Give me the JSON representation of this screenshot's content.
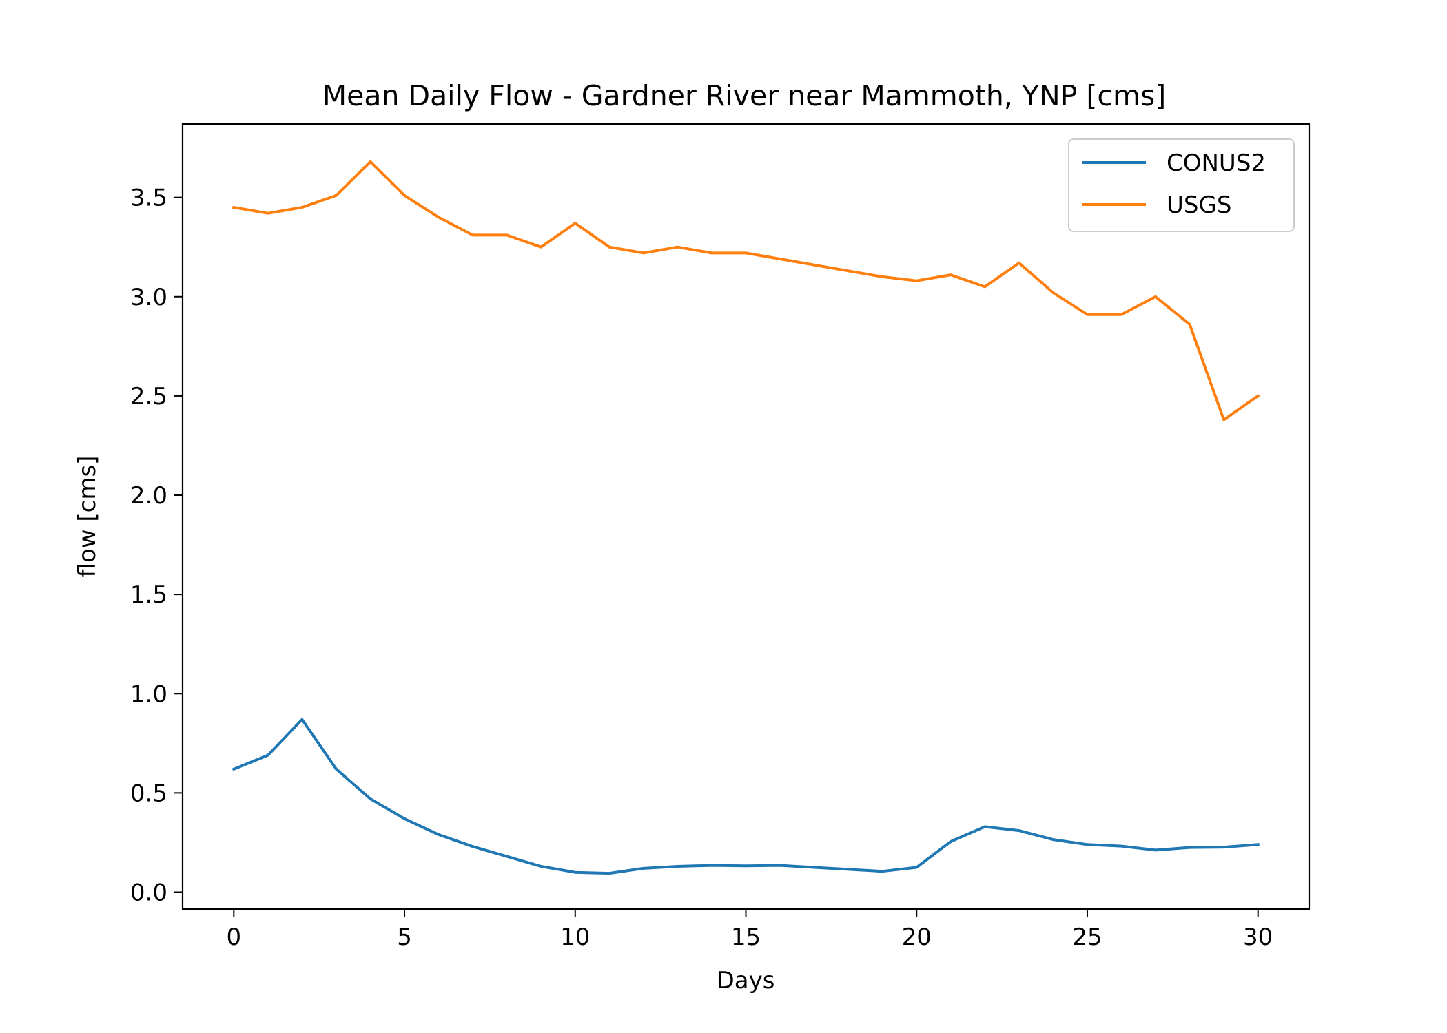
{
  "chart_data": {
    "type": "line",
    "title": "Mean Daily Flow - Gardner River near Mammoth, YNP [cms]",
    "xlabel": "Days",
    "ylabel": "flow [cms]",
    "xlim": [
      -1.5,
      31.5
    ],
    "ylim": [
      -0.085,
      3.87
    ],
    "xticks": [
      0,
      5,
      10,
      15,
      20,
      25,
      30
    ],
    "xtick_labels": [
      "0",
      "5",
      "10",
      "15",
      "20",
      "25",
      "30"
    ],
    "yticks": [
      0.0,
      0.5,
      1.0,
      1.5,
      2.0,
      2.5,
      3.0,
      3.5
    ],
    "ytick_labels": [
      "0.0",
      "0.5",
      "1.0",
      "1.5",
      "2.0",
      "2.5",
      "3.0",
      "3.5"
    ],
    "grid": false,
    "legend_position": "top-right",
    "x": [
      0,
      1,
      2,
      3,
      4,
      5,
      6,
      7,
      8,
      9,
      10,
      11,
      12,
      13,
      14,
      15,
      16,
      17,
      18,
      19,
      20,
      21,
      22,
      23,
      24,
      25,
      26,
      27,
      28,
      29,
      30
    ],
    "series": [
      {
        "name": "CONUS2",
        "color": "#1f77b4",
        "values": [
          0.62,
          0.69,
          0.87,
          0.62,
          0.47,
          0.37,
          0.29,
          0.23,
          0.18,
          0.13,
          0.1,
          0.095,
          0.12,
          0.13,
          0.135,
          0.133,
          0.135,
          0.125,
          0.115,
          0.105,
          0.125,
          0.255,
          0.33,
          0.31,
          0.265,
          0.24,
          0.232,
          0.212,
          0.225,
          0.227,
          0.24
        ]
      },
      {
        "name": "USGS",
        "color": "#ff7f0e",
        "values": [
          3.45,
          3.42,
          3.45,
          3.51,
          3.68,
          3.51,
          3.4,
          3.31,
          3.31,
          3.25,
          3.37,
          3.25,
          3.22,
          3.25,
          3.22,
          3.22,
          3.19,
          3.16,
          3.13,
          3.1,
          3.08,
          3.11,
          3.05,
          3.17,
          3.02,
          2.91,
          2.91,
          3.0,
          2.86,
          2.38,
          2.5
        ]
      }
    ]
  }
}
